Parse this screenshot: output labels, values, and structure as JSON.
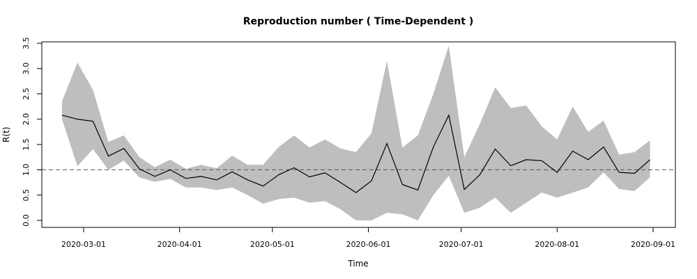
{
  "chart_data": {
    "type": "line",
    "title": "Reproduction number ( Time-Dependent )",
    "xlabel": "Time",
    "ylabel": "R(t)",
    "ylim": [
      0,
      3.5
    ],
    "y_ticks": [
      0.0,
      0.5,
      1.0,
      1.5,
      2.0,
      2.5,
      3.0,
      3.5
    ],
    "y_tick_labels": [
      "0.0",
      "0.5",
      "1.0",
      "1.5",
      "2.0",
      "2.5",
      "3.0",
      "3.5"
    ],
    "x_ticks": [
      "2020-03-01",
      "2020-04-01",
      "2020-05-01",
      "2020-06-01",
      "2020-07-01",
      "2020-08-01",
      "2020-09-01"
    ],
    "x_tick_labels": [
      "2020-03-01",
      "2020-04-01",
      "2020-05-01",
      "2020-06-01",
      "2020-07-01",
      "2020-08-01",
      "2020-09-01"
    ],
    "reference_line": {
      "y": 1.0,
      "style": "dashed"
    },
    "grid": false,
    "colors": {
      "line": "#000000",
      "band": "#bebebe",
      "reference": "#555555"
    },
    "x": [
      "2020-02-23",
      "2020-02-28",
      "2020-03-04",
      "2020-03-09",
      "2020-03-14",
      "2020-03-19",
      "2020-03-24",
      "2020-03-29",
      "2020-04-03",
      "2020-04-08",
      "2020-04-13",
      "2020-04-18",
      "2020-04-23",
      "2020-04-28",
      "2020-05-03",
      "2020-05-08",
      "2020-05-13",
      "2020-05-18",
      "2020-05-23",
      "2020-05-28",
      "2020-06-02",
      "2020-06-07",
      "2020-06-12",
      "2020-06-17",
      "2020-06-22",
      "2020-06-27",
      "2020-07-02",
      "2020-07-07",
      "2020-07-12",
      "2020-07-17",
      "2020-07-22",
      "2020-07-27",
      "2020-08-01",
      "2020-08-06",
      "2020-08-11",
      "2020-08-16",
      "2020-08-21",
      "2020-08-26",
      "2020-08-31"
    ],
    "series": [
      {
        "values": [
          2.08,
          2.0,
          1.96,
          1.27,
          1.42,
          1.02,
          0.87,
          1.0,
          0.83,
          0.87,
          0.8,
          0.96,
          0.8,
          0.68,
          0.9,
          1.04,
          0.86,
          0.94,
          0.75,
          0.55,
          0.78,
          1.52,
          0.71,
          0.6,
          1.45,
          2.08,
          0.61,
          0.9,
          1.41,
          1.08,
          1.2,
          1.18,
          0.95,
          1.37,
          1.2,
          1.45,
          0.95,
          0.93,
          1.2
        ]
      }
    ],
    "band_lower": [
      2.0,
      1.07,
      1.41,
      1.0,
      1.18,
      0.85,
      0.76,
      0.82,
      0.65,
      0.65,
      0.6,
      0.65,
      0.5,
      0.33,
      0.42,
      0.45,
      0.35,
      0.38,
      0.22,
      0.0,
      0.0,
      0.15,
      0.12,
      0.0,
      0.5,
      0.88,
      0.15,
      0.25,
      0.45,
      0.15,
      0.35,
      0.55,
      0.45,
      0.55,
      0.65,
      0.95,
      0.62,
      0.58,
      0.85
    ],
    "band_upper": [
      2.35,
      3.12,
      2.58,
      1.55,
      1.68,
      1.25,
      1.05,
      1.2,
      1.02,
      1.1,
      1.03,
      1.28,
      1.1,
      1.1,
      1.45,
      1.68,
      1.44,
      1.6,
      1.42,
      1.35,
      1.72,
      3.15,
      1.44,
      1.68,
      2.5,
      3.45,
      1.25,
      1.9,
      2.63,
      2.22,
      2.27,
      1.86,
      1.6,
      2.25,
      1.75,
      1.97,
      1.3,
      1.35,
      1.58
    ]
  }
}
